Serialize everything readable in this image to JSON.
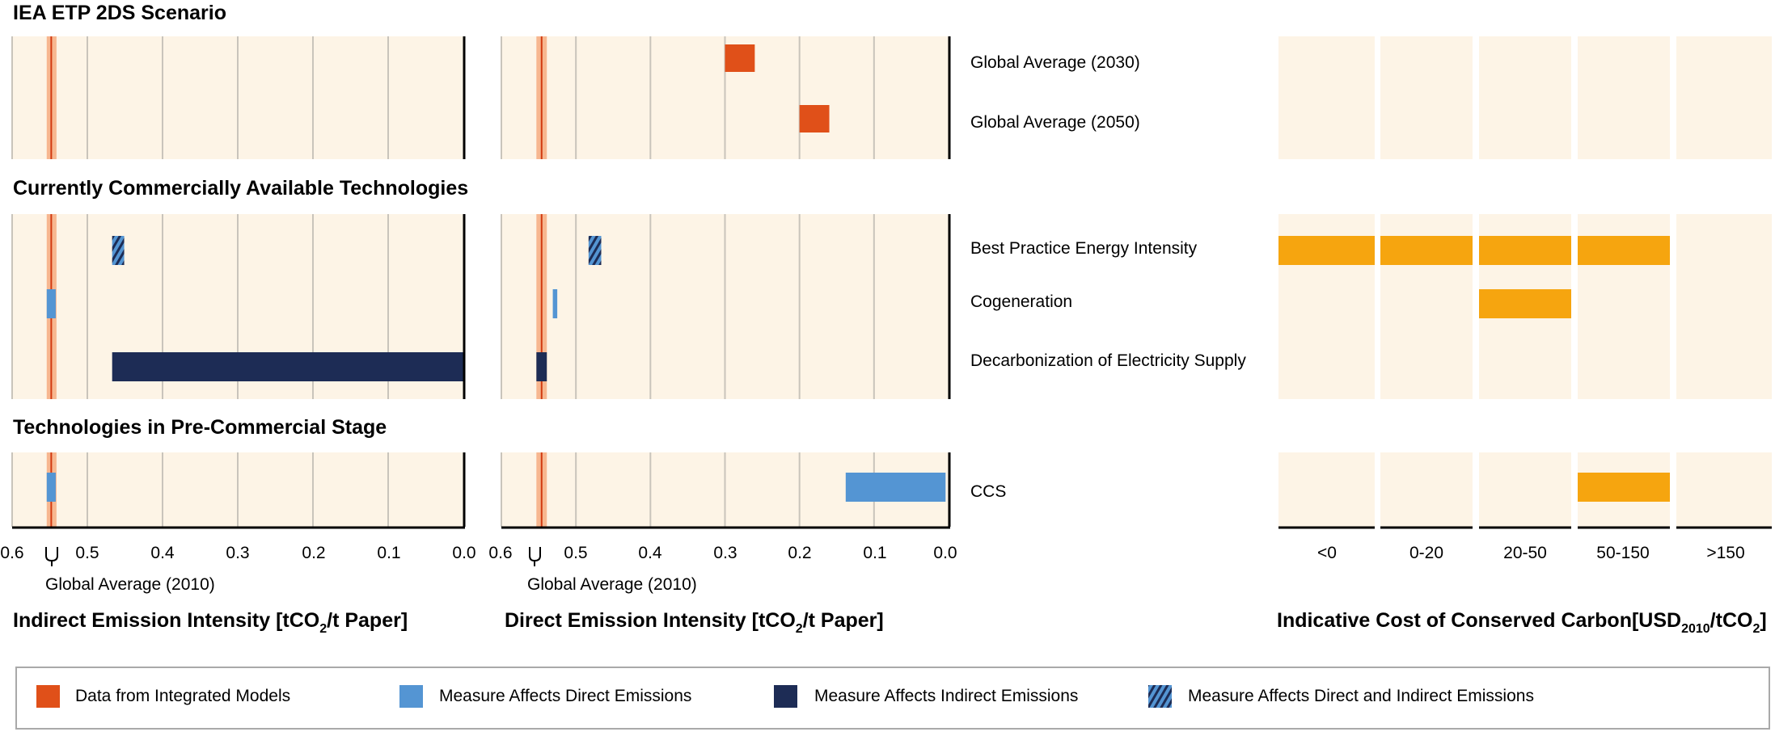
{
  "chart_data": {
    "type": "bar",
    "panels": [
      {
        "title": "IEA ETP 2DS Scenario",
        "rows": [
          "Global Average (2030)",
          "Global Average (2050)"
        ]
      },
      {
        "title": "Currently Commercially Available Technologies",
        "rows": [
          "Best Practice Energy Intensity",
          "Cogeneration",
          "Decarbonization of Electricity Supply"
        ]
      },
      {
        "title": "Technologies in Pre-Commercial Stage",
        "rows": [
          "CCS"
        ]
      }
    ],
    "charts": [
      {
        "name": "indirect",
        "xlabel": "Indirect Emission Intensity [tCO",
        "xlabel_sub": "2",
        "xlabel_tail": "/t Paper]",
        "xlim": [
          0.6,
          0.0
        ],
        "ticks": [
          0.6,
          0.5,
          0.4,
          0.3,
          0.2,
          0.1,
          0.0
        ],
        "tick_labels": [
          "0.6",
          "0.5",
          "0.4",
          "0.3",
          "0.2",
          "0.1",
          "0.0"
        ],
        "reference": {
          "label": "Global Average (2010)",
          "band": [
            0.554,
            0.541
          ],
          "line": 0.548
        },
        "bars": [
          {
            "panel": 1,
            "row": 0,
            "from": 0.467,
            "to": 0.451,
            "style": "hatched"
          },
          {
            "panel": 1,
            "row": 1,
            "from": 0.554,
            "to": 0.542,
            "style": "direct"
          },
          {
            "panel": 1,
            "row": 2,
            "from": 0.467,
            "to": 0.0,
            "style": "indirect"
          },
          {
            "panel": 2,
            "row": 0,
            "from": 0.554,
            "to": 0.542,
            "style": "direct"
          }
        ]
      },
      {
        "name": "direct",
        "xlabel": "Direct Emission Intensity [tCO",
        "xlabel_sub": "2",
        "xlabel_tail": "/t Paper]",
        "xlim": [
          0.6,
          0.0
        ],
        "ticks": [
          0.6,
          0.5,
          0.4,
          0.3,
          0.2,
          0.1,
          0.0
        ],
        "tick_labels": [
          "0.6",
          "0.5",
          "0.4",
          "0.3",
          "0.2",
          "0.1",
          "0.0"
        ],
        "reference": {
          "label": "Global Average (2010)",
          "band": [
            0.553,
            0.539
          ],
          "line": 0.546
        },
        "bars": [
          {
            "panel": 0,
            "row": 0,
            "from": 0.3,
            "to": 0.26,
            "style": "models"
          },
          {
            "panel": 0,
            "row": 1,
            "from": 0.2,
            "to": 0.16,
            "style": "models"
          },
          {
            "panel": 1,
            "row": 0,
            "from": 0.483,
            "to": 0.466,
            "style": "hatched"
          },
          {
            "panel": 1,
            "row": 1,
            "from": 0.531,
            "to": 0.525,
            "style": "direct"
          },
          {
            "panel": 1,
            "row": 2,
            "from": 0.553,
            "to": 0.539,
            "style": "indirect"
          },
          {
            "panel": 2,
            "row": 0,
            "from": 0.138,
            "to": 0.004,
            "style": "direct"
          }
        ]
      }
    ],
    "cost": {
      "xlabel": "Indicative Cost of Conserved Carbon[USD",
      "xlabel_sub": "2010",
      "xlabel_mid": "/tCO",
      "xlabel_sub2": "2",
      "xlabel_tail": "]",
      "categories": [
        "<0",
        "0-20",
        "20-50",
        "50-150",
        ">150"
      ],
      "bars": [
        {
          "panel": 1,
          "row": 0,
          "categories": [
            0,
            1,
            2,
            3
          ]
        },
        {
          "panel": 1,
          "row": 1,
          "categories": [
            2
          ]
        },
        {
          "panel": 2,
          "row": 0,
          "categories": [
            3
          ]
        }
      ]
    },
    "legend": [
      {
        "label": "Data from Integrated Models",
        "style": "models"
      },
      {
        "label": "Measure Affects Direct Emissions",
        "style": "direct"
      },
      {
        "label": "Measure Affects Indirect Emissions",
        "style": "indirect"
      },
      {
        "label": "Measure Affects Direct and Indirect Emissions",
        "style": "hatched"
      }
    ],
    "colors": {
      "background": "#fdf4e6",
      "grid": "#c9c4bb",
      "axis": "#000000",
      "models": "#e05019",
      "direct": "#5495d3",
      "indirect": "#1d2c55",
      "cost": "#f6a50f",
      "reference_band": "#f7b790",
      "reference_line": "#d13a10"
    }
  }
}
